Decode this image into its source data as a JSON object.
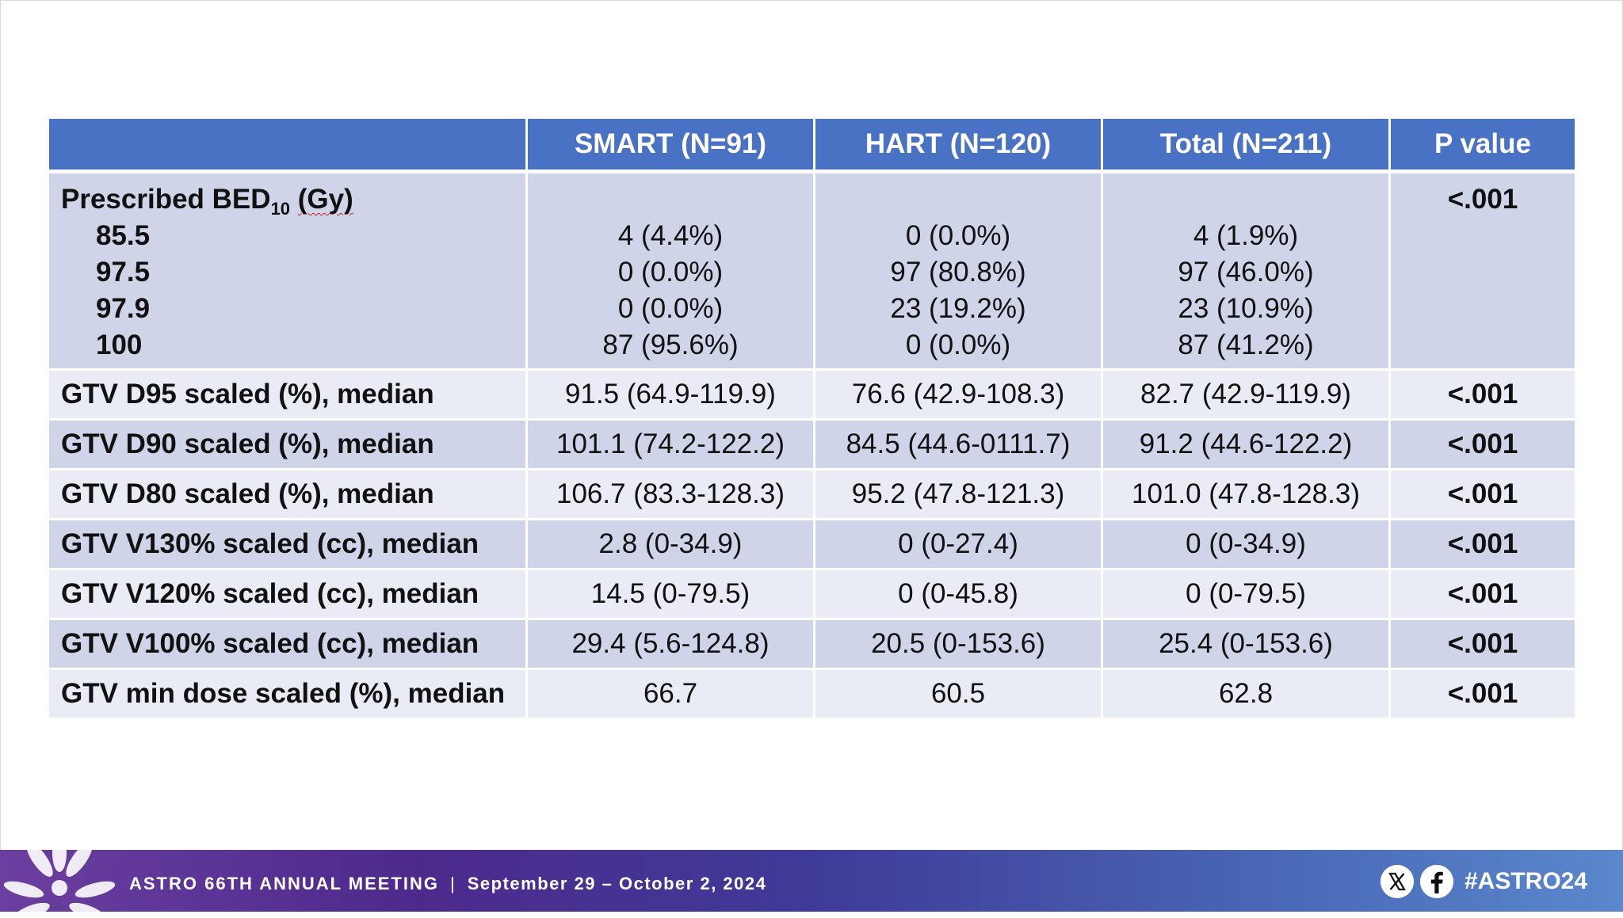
{
  "table": {
    "headers": [
      "",
      "SMART (N=91)",
      "HART (N=120)",
      "Total (N=211)",
      "P value"
    ],
    "prescribed": {
      "label_main": "Prescribed BED",
      "label_sub": "10",
      "label_unit": "(Gy)",
      "p": "<.001",
      "rows": [
        {
          "label": "85.5",
          "smart": "4 (4.4%)",
          "hart": "0 (0.0%)",
          "total": "4 (1.9%)"
        },
        {
          "label": "97.5",
          "smart": "0 (0.0%)",
          "hart": "97 (80.8%)",
          "total": "97 (46.0%)"
        },
        {
          "label": "97.9",
          "smart": "0 (0.0%)",
          "hart": "23 (19.2%)",
          "total": "23 (10.9%)"
        },
        {
          "label": "100",
          "smart": "87 (95.6%)",
          "hart": "0 (0.0%)",
          "total": "87 (41.2%)"
        }
      ]
    },
    "rows": [
      {
        "label": "GTV D95 scaled (%), median",
        "smart": "91.5 (64.9-119.9)",
        "hart": "76.6 (42.9-108.3)",
        "total": "82.7 (42.9-119.9)",
        "p": "<.001"
      },
      {
        "label": "GTV D90 scaled (%), median",
        "smart": "101.1 (74.2-122.2)",
        "hart": "84.5 (44.6-0111.7)",
        "total": "91.2 (44.6-122.2)",
        "p": "<.001"
      },
      {
        "label": "GTV D80 scaled (%), median",
        "smart": "106.7 (83.3-128.3)",
        "hart": "95.2 (47.8-121.3)",
        "total": "101.0 (47.8-128.3)",
        "p": "<.001"
      },
      {
        "label": "GTV V130% scaled (cc), median",
        "smart": "2.8 (0-34.9)",
        "hart": "0 (0-27.4)",
        "total": "0 (0-34.9)",
        "p": "<.001"
      },
      {
        "label": "GTV V120% scaled (cc), median",
        "smart": "14.5 (0-79.5)",
        "hart": "0 (0-45.8)",
        "total": "0 (0-79.5)",
        "p": "<.001"
      },
      {
        "label": "GTV V100% scaled (cc), median",
        "smart": "29.4 (5.6-124.8)",
        "hart": "20.5 (0-153.6)",
        "total": "25.4 (0-153.6)",
        "p": "<.001"
      },
      {
        "label": "GTV min dose scaled (%), median",
        "smart": "66.7",
        "hart": "60.5",
        "total": "62.8",
        "p": "<.001"
      }
    ]
  },
  "footer": {
    "meeting": "ASTRO 66TH ANNUAL MEETING",
    "separator": "|",
    "dates": "September 29 – October 2, 2024",
    "hashtag": "#ASTRO24",
    "social_icons": [
      "x-icon",
      "facebook-icon"
    ],
    "colors": {
      "header_blue": "#4a72c4",
      "row_dark": "#cfd4e8",
      "row_light": "#e9ebf5",
      "footer_purple": "#4d2a8c"
    }
  }
}
